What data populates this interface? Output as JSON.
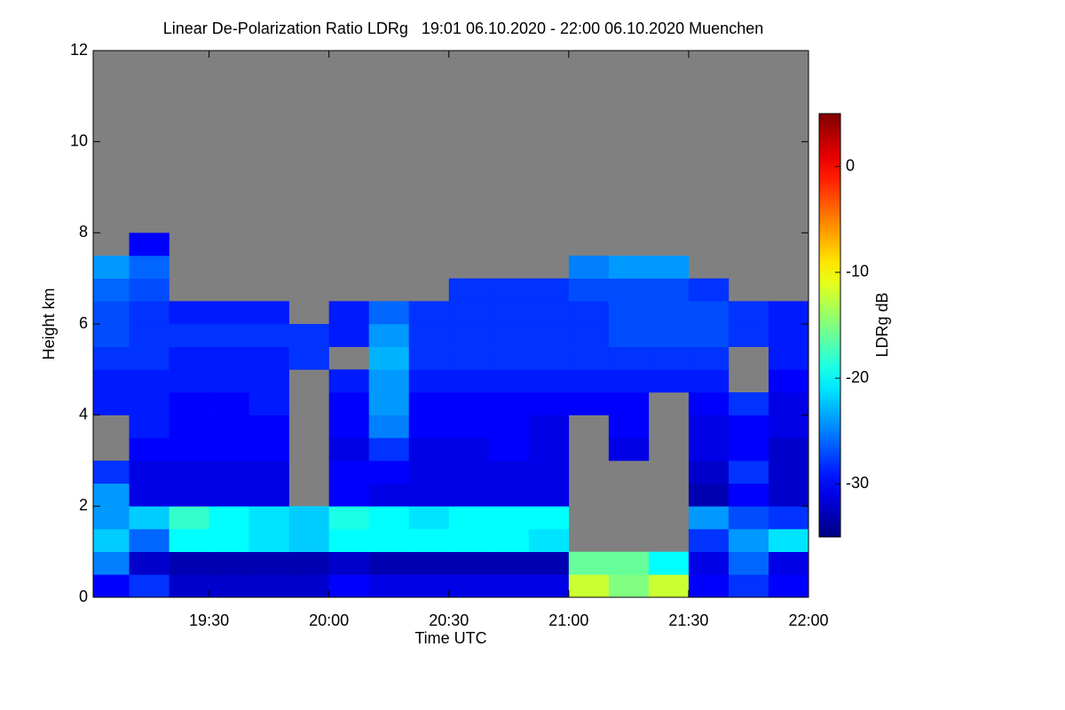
{
  "chart_data": {
    "type": "heatmap",
    "title": "Linear De-Polarization Ratio LDRg   19:01 06.10.2020 - 22:00 06.10.2020 Muenchen",
    "xlabel": "Time UTC",
    "ylabel": "Height km",
    "colorbar_label": "LDRg dB",
    "xlim": [
      1,
      180
    ],
    "xticks": [
      {
        "value": 30,
        "label": "19:30"
      },
      {
        "value": 60,
        "label": "20:00"
      },
      {
        "value": 90,
        "label": "20:30"
      },
      {
        "value": 120,
        "label": "21:00"
      },
      {
        "value": 150,
        "label": "21:30"
      },
      {
        "value": 180,
        "label": "22:00"
      }
    ],
    "ylim": [
      0,
      12
    ],
    "yticks": [
      0,
      2,
      4,
      6,
      8,
      10,
      12
    ],
    "clim": [
      -35,
      5
    ],
    "cticks": [
      -30,
      -20,
      -10,
      0
    ],
    "colormap": "jet",
    "nodata_color": "#808080",
    "x_bins": [
      1,
      10,
      20,
      30,
      40,
      50,
      60,
      70,
      80,
      90,
      100,
      110,
      120,
      130,
      140,
      150,
      160,
      170,
      180
    ],
    "y_bins": [
      0,
      0.5,
      1,
      1.5,
      2,
      2.5,
      3,
      3.5,
      4,
      4.5,
      5,
      5.5,
      6,
      6.5,
      7,
      7.5,
      8,
      8.5,
      9,
      9.5,
      10,
      10.5,
      11,
      11.5,
      12
    ],
    "z": [
      [
        -30,
        -28,
        -32,
        -32,
        -32,
        -32,
        -30,
        -31,
        -31,
        -31,
        -31,
        -31,
        -12,
        -15,
        -12,
        -30,
        -28,
        -30
      ],
      [
        -25,
        -32,
        -33,
        -33,
        -33,
        -33,
        -32,
        -33,
        -33,
        -33,
        -33,
        -33,
        -16,
        -16,
        -20,
        -31,
        -26,
        -31
      ],
      [
        -22,
        -26,
        -20,
        -20,
        -21,
        -22,
        -20,
        -20,
        -20,
        -20,
        -20,
        -21,
        null,
        null,
        null,
        -28,
        -24,
        -21
      ],
      [
        -24,
        -22,
        -18,
        -20,
        -21,
        -22,
        -19,
        -20,
        -21,
        -20,
        -20,
        -20,
        null,
        null,
        null,
        -24,
        -27,
        -28
      ],
      [
        -24,
        -31,
        -31,
        -31,
        -31,
        null,
        -30,
        -31,
        -31,
        -31,
        -31,
        -31,
        null,
        null,
        null,
        -33,
        -30,
        -32
      ],
      [
        -28,
        -31,
        -31,
        -31,
        -31,
        null,
        -30,
        -30,
        -31,
        -31,
        -31,
        -31,
        null,
        null,
        null,
        -32,
        -28,
        -32
      ],
      [
        null,
        -30,
        -30,
        -30,
        -30,
        null,
        -31,
        -28,
        -31,
        -31,
        -30,
        -31,
        null,
        -31,
        null,
        -31,
        -30,
        -32
      ],
      [
        null,
        -29,
        -30,
        -30,
        -30,
        null,
        -30,
        -25,
        -30,
        -30,
        -30,
        -31,
        null,
        -30,
        null,
        -31,
        -30,
        -31
      ],
      [
        -29,
        -29,
        -30,
        -30,
        -29,
        null,
        -30,
        -24,
        -30,
        -30,
        -30,
        -30,
        -30,
        -30,
        null,
        -30,
        -28,
        -31
      ],
      [
        -29,
        -29,
        -29,
        -29,
        -29,
        null,
        -29,
        -24,
        -29,
        -29,
        -29,
        -29,
        -29,
        -29,
        -29,
        -29,
        null,
        -30
      ],
      [
        -28,
        -28,
        -29,
        -29,
        -29,
        -28,
        null,
        -23,
        -28,
        -28,
        -28,
        -28,
        -28,
        -28,
        -28,
        -28,
        null,
        -29
      ],
      [
        -27,
        -28,
        -28,
        -28,
        -28,
        -28,
        -29,
        -24,
        -28,
        -28,
        -28,
        -28,
        -28,
        -27,
        -27,
        -27,
        -28,
        -29
      ],
      [
        -27,
        -28,
        -29,
        -29,
        -29,
        null,
        -29,
        -26,
        -28,
        -28,
        -28,
        -28,
        -28,
        -27,
        -27,
        -27,
        -28,
        -29
      ],
      [
        -26,
        -27,
        null,
        null,
        null,
        null,
        null,
        null,
        null,
        -28,
        -28,
        -28,
        -27,
        -27,
        -27,
        -28,
        null,
        null
      ],
      [
        -24,
        -26,
        null,
        null,
        null,
        null,
        null,
        null,
        null,
        null,
        null,
        null,
        -25,
        -24,
        -24,
        null,
        null,
        null
      ],
      [
        null,
        -30,
        null,
        null,
        null,
        null,
        null,
        null,
        null,
        null,
        null,
        null,
        null,
        null,
        null,
        null,
        null,
        null
      ],
      [
        null,
        null,
        null,
        null,
        null,
        null,
        null,
        null,
        null,
        null,
        null,
        null,
        null,
        null,
        null,
        null,
        null,
        null
      ],
      [
        null,
        null,
        null,
        null,
        null,
        null,
        null,
        null,
        null,
        null,
        null,
        null,
        null,
        null,
        null,
        null,
        null,
        null
      ],
      [
        null,
        null,
        null,
        null,
        null,
        null,
        null,
        null,
        null,
        null,
        null,
        null,
        null,
        null,
        null,
        null,
        null,
        null
      ],
      [
        null,
        null,
        null,
        null,
        null,
        null,
        null,
        null,
        null,
        null,
        null,
        null,
        null,
        null,
        null,
        null,
        null,
        null
      ],
      [
        null,
        null,
        null,
        null,
        null,
        null,
        null,
        null,
        null,
        null,
        null,
        null,
        null,
        null,
        null,
        null,
        null,
        null
      ],
      [
        null,
        null,
        null,
        null,
        null,
        null,
        null,
        null,
        null,
        null,
        null,
        null,
        null,
        null,
        null,
        null,
        null,
        null
      ],
      [
        null,
        null,
        null,
        null,
        null,
        null,
        null,
        null,
        null,
        null,
        null,
        null,
        null,
        null,
        null,
        null,
        null,
        null
      ],
      [
        null,
        null,
        null,
        null,
        null,
        null,
        null,
        null,
        null,
        null,
        null,
        null,
        null,
        null,
        null,
        null,
        null,
        null
      ]
    ]
  }
}
